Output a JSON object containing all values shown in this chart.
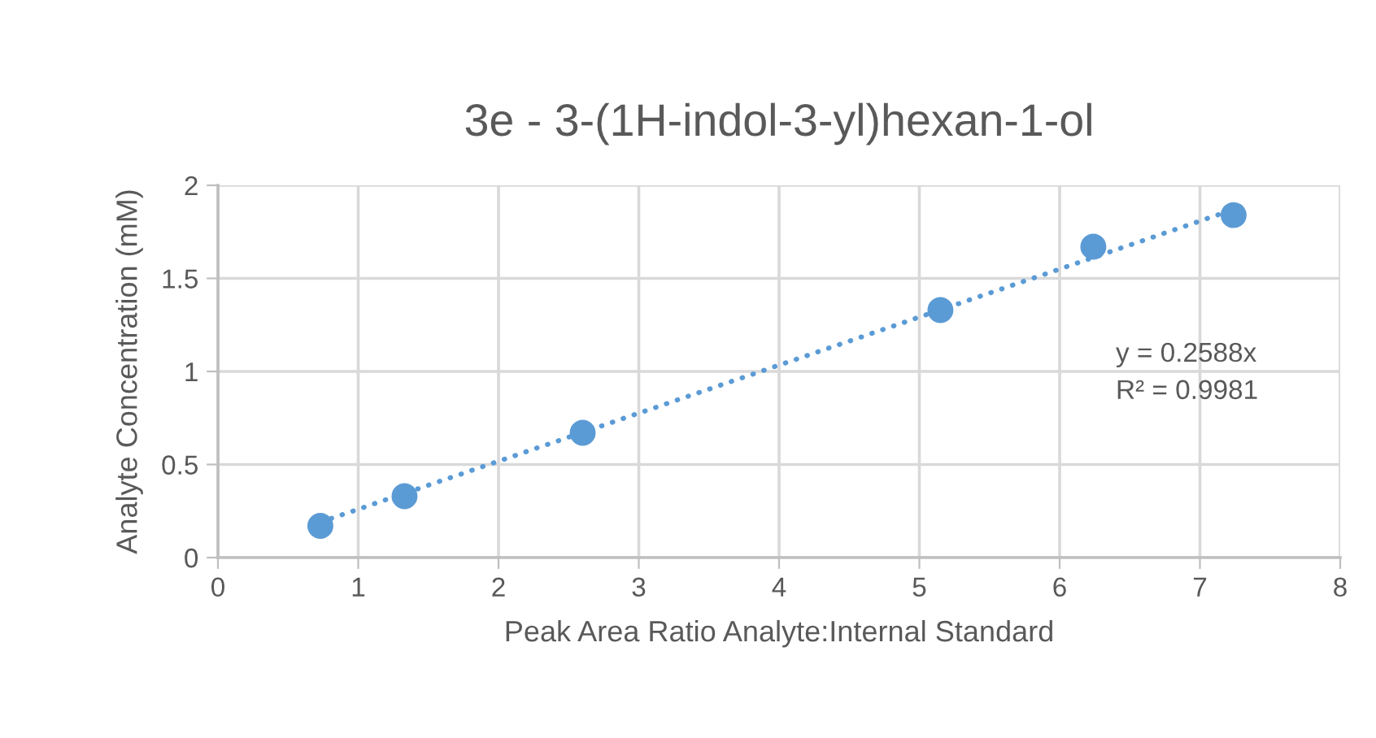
{
  "chart_data": {
    "type": "scatter",
    "title": "3e - 3-(1H-indol-3-yl)hexan-1-ol",
    "xlabel": "Peak Area Ratio Analyte:Internal Standard",
    "ylabel": "Analyte Concentration (mM)",
    "x": [
      0.73,
      1.33,
      2.6,
      5.15,
      6.24,
      7.24
    ],
    "series": [
      {
        "color": "#5b9bd5",
        "values": [
          0.17,
          0.33,
          0.67,
          1.33,
          1.67,
          1.84
        ],
        "marker": "circle"
      },
      {
        "type": "line",
        "color": "#5b9bd5",
        "x": [
          0.73,
          7.24
        ],
        "values": [
          0.19,
          1.87
        ],
        "line_style": "dotted",
        "marker": "none"
      }
    ],
    "annotations": [
      "y = 0.2588x",
      "R² = 0.9981"
    ],
    "xlim": [
      0,
      8
    ],
    "ylim": [
      0,
      2
    ],
    "xticks": [
      0,
      1,
      2,
      3,
      4,
      5,
      6,
      7,
      8
    ],
    "yticks": [
      0,
      0.5,
      1,
      1.5,
      2
    ],
    "grid": true
  }
}
